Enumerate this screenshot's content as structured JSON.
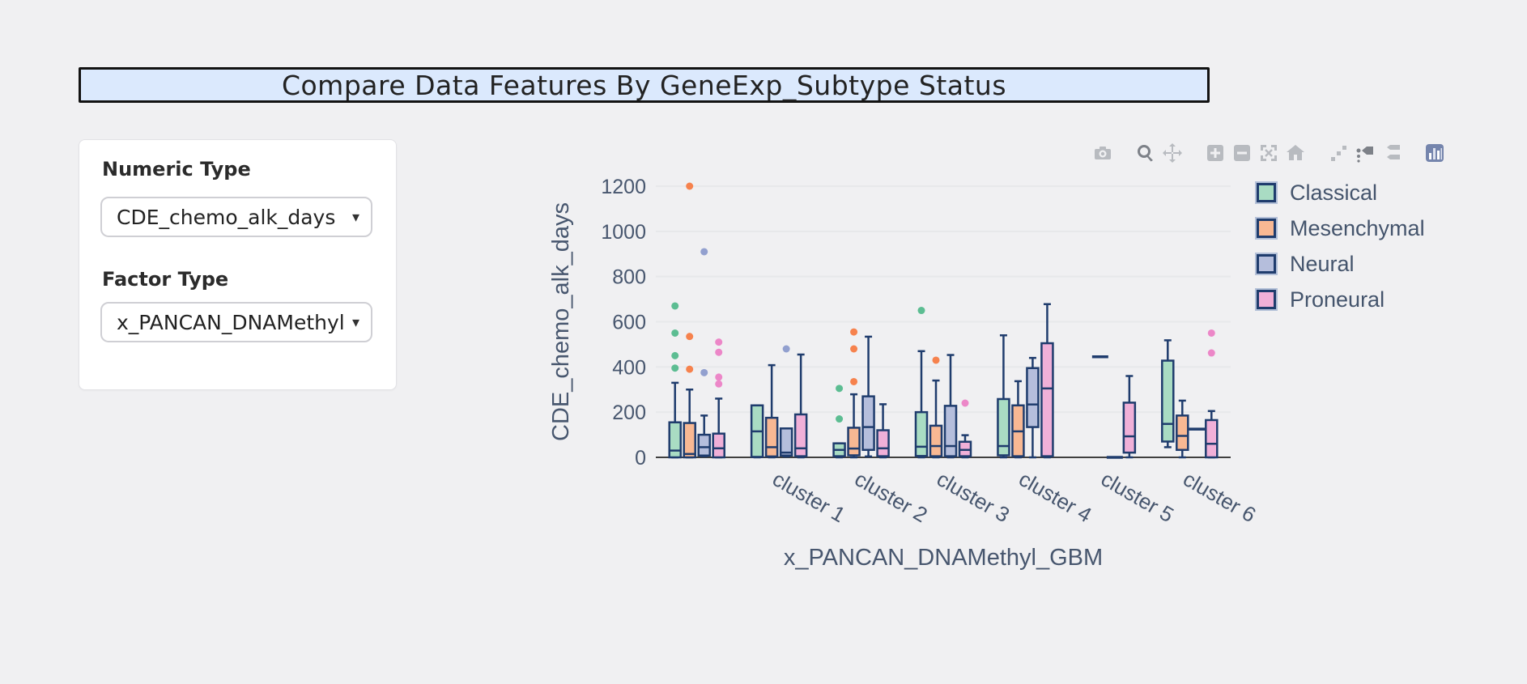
{
  "title_banner": {
    "text": "Compare Data Features By GeneExp_Subtype Status",
    "bg": "#dbe9fd"
  },
  "sidebar": {
    "numeric_label": "Numeric Type",
    "numeric_value": "CDE_chemo_alk_days",
    "factor_label": "Factor Type",
    "factor_value": "x_PANCAN_DNAMethyl",
    "caret": "▾"
  },
  "modebar": {
    "groups": [
      [
        {
          "name": "camera",
          "active": false
        }
      ],
      [
        {
          "name": "zoom",
          "active": true
        },
        {
          "name": "pan",
          "active": false
        }
      ],
      [
        {
          "name": "zoom-in",
          "active": false
        },
        {
          "name": "zoom-out",
          "active": false
        },
        {
          "name": "autoscale",
          "active": false
        },
        {
          "name": "reset-axes",
          "active": false
        }
      ],
      [
        {
          "name": "spikelines",
          "active": false
        },
        {
          "name": "hover-closest",
          "active": true
        },
        {
          "name": "hover-compare",
          "active": false
        }
      ],
      [
        {
          "name": "plotly-logo",
          "active": false
        }
      ]
    ],
    "color_idle": "#b8bbc0",
    "color_active": "#7d8188",
    "logo_color": "#7585ad"
  },
  "legend": {
    "items": [
      {
        "label": "Classical",
        "fill": "#a9dcc3"
      },
      {
        "label": "Mesenchymal",
        "fill": "#f8b893"
      },
      {
        "label": "Neural",
        "fill": "#b5bedc"
      },
      {
        "label": "Proneural",
        "fill": "#f0b0d8"
      }
    ]
  },
  "chart_data": {
    "type": "box",
    "xlabel": "x_PANCAN_DNAMethyl_GBM",
    "ylabel": "CDE_chemo_alk_days",
    "categories": [
      "",
      "cluster 1",
      "cluster 2",
      "cluster 3",
      "cluster 4",
      "cluster 5",
      "cluster 6"
    ],
    "yticks": [
      0,
      200,
      400,
      600,
      800,
      1000,
      1200
    ],
    "ylim": [
      0,
      1260
    ],
    "grid": true,
    "legend_position": "right",
    "colors": {
      "box_border": "#1f3c6d",
      "axis_text": "#47566e",
      "grid_line": "#e7e8ea",
      "axis_line": "#3f3f3f"
    },
    "series": [
      {
        "name": "Classical",
        "fill": "#a9dcc3",
        "point": "#5cbd92",
        "boxes": [
          {
            "lo": 0,
            "q1": 0,
            "med": 30,
            "q3": 155,
            "hi": 330,
            "outliers": [
              395,
              450,
              550,
              670
            ]
          },
          {
            "lo": 0,
            "q1": 2,
            "med": 115,
            "q3": 230,
            "hi": 230,
            "outliers": []
          },
          {
            "lo": 0,
            "q1": 5,
            "med": 33,
            "q3": 62,
            "hi": 62,
            "outliers": [
              170,
              305
            ]
          },
          {
            "lo": 0,
            "q1": 6,
            "med": 47,
            "q3": 200,
            "hi": 470,
            "outliers": [
              650
            ]
          },
          {
            "lo": 0,
            "q1": 9,
            "med": 50,
            "q3": 258,
            "hi": 540,
            "outliers": []
          },
          null,
          {
            "lo": 45,
            "q1": 70,
            "med": 148,
            "q3": 428,
            "hi": 518,
            "outliers": []
          }
        ]
      },
      {
        "name": "Mesenchymal",
        "fill": "#f8b893",
        "point": "#f6824d",
        "boxes": [
          {
            "lo": 0,
            "q1": 0,
            "med": 15,
            "q3": 152,
            "hi": 300,
            "outliers": [
              390,
              535,
              1200
            ]
          },
          {
            "lo": 0,
            "q1": 4,
            "med": 45,
            "q3": 175,
            "hi": 408,
            "outliers": []
          },
          {
            "lo": 0,
            "q1": 9,
            "med": 39,
            "q3": 131,
            "hi": 279,
            "outliers": [
              335,
              480,
              555
            ]
          },
          {
            "lo": 0,
            "q1": 5,
            "med": 50,
            "q3": 140,
            "hi": 340,
            "outliers": [
              430
            ]
          },
          {
            "lo": 0,
            "q1": 5,
            "med": 115,
            "q3": 230,
            "hi": 337,
            "outliers": []
          },
          {
            "lo": 445,
            "q1": 445,
            "med": 445,
            "q3": 445,
            "hi": 445,
            "outliers": []
          },
          {
            "lo": 0,
            "q1": 33,
            "med": 95,
            "q3": 185,
            "hi": 251,
            "outliers": []
          }
        ]
      },
      {
        "name": "Neural",
        "fill": "#b5bedc",
        "point": "#92a0cf",
        "boxes": [
          {
            "lo": 5,
            "q1": 8,
            "med": 45,
            "q3": 100,
            "hi": 185,
            "outliers": [
              375,
              910
            ]
          },
          {
            "lo": 4,
            "q1": 8,
            "med": 21,
            "q3": 128,
            "hi": 128,
            "outliers": [
              480
            ]
          },
          {
            "lo": 4,
            "q1": 33,
            "med": 134,
            "q3": 270,
            "hi": 534,
            "outliers": []
          },
          {
            "lo": 0,
            "q1": 5,
            "med": 50,
            "q3": 228,
            "hi": 453,
            "outliers": []
          },
          {
            "lo": 0,
            "q1": 134,
            "med": 234,
            "q3": 395,
            "hi": 440,
            "outliers": []
          },
          {
            "lo": 0,
            "q1": 0,
            "med": 0,
            "q3": 0,
            "hi": 0,
            "outliers": []
          },
          {
            "lo": 125,
            "q1": 125,
            "med": 125,
            "q3": 125,
            "hi": 125,
            "outliers": []
          }
        ]
      },
      {
        "name": "Proneural",
        "fill": "#f0b0d8",
        "point": "#ec87c8",
        "boxes": [
          {
            "lo": 0,
            "q1": 0,
            "med": 40,
            "q3": 105,
            "hi": 260,
            "outliers": [
              325,
              355,
              465,
              510
            ]
          },
          {
            "lo": 0,
            "q1": 5,
            "med": 40,
            "q3": 190,
            "hi": 455,
            "outliers": []
          },
          {
            "lo": 0,
            "q1": 5,
            "med": 40,
            "q3": 120,
            "hi": 235,
            "outliers": []
          },
          {
            "lo": 0,
            "q1": 5,
            "med": 33,
            "q3": 69,
            "hi": 98,
            "outliers": [
              240
            ]
          },
          {
            "lo": 0,
            "q1": 5,
            "med": 305,
            "q3": 505,
            "hi": 678,
            "outliers": []
          },
          {
            "lo": 0,
            "q1": 21,
            "med": 93,
            "q3": 242,
            "hi": 360,
            "outliers": []
          },
          {
            "lo": 0,
            "q1": 0,
            "med": 60,
            "q3": 165,
            "hi": 205,
            "outliers": [
              462,
              550
            ]
          }
        ]
      }
    ]
  }
}
